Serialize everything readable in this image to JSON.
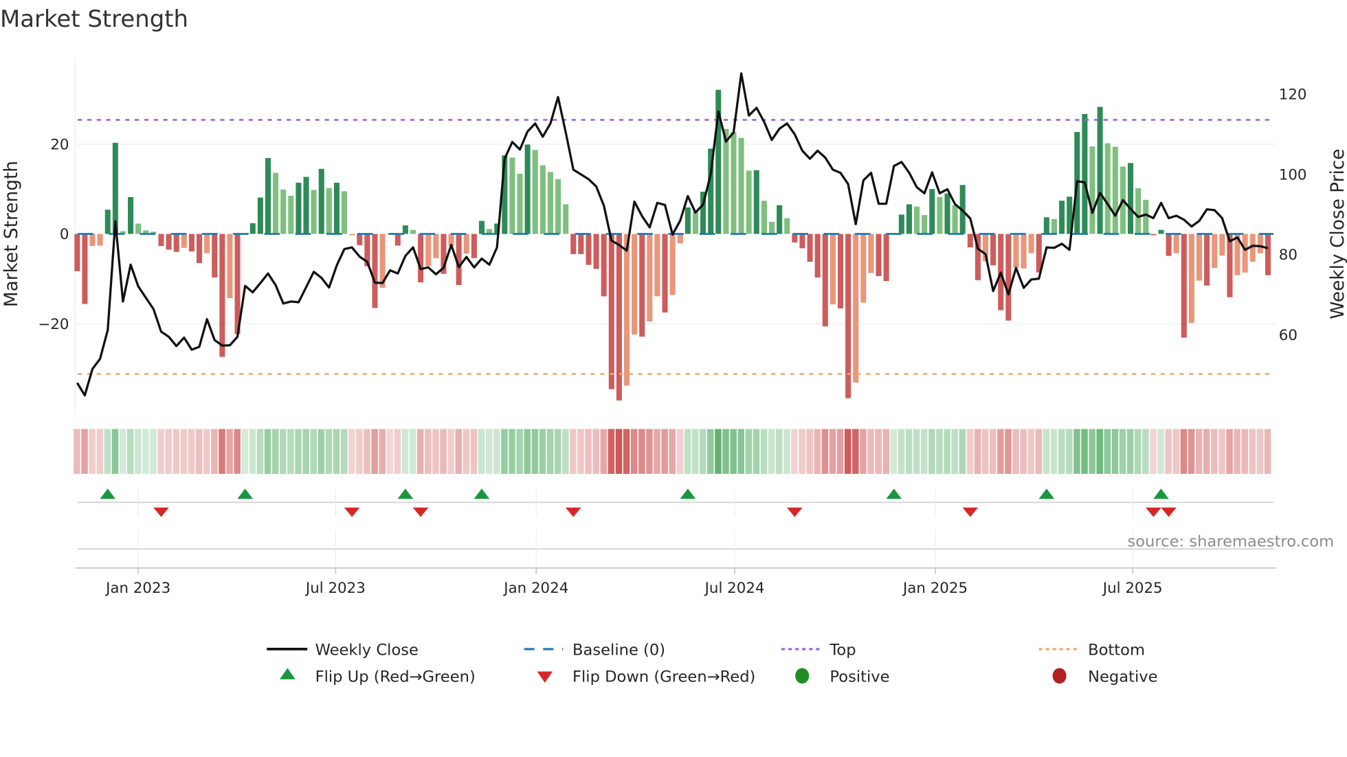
{
  "chart_data": {
    "type": "bar",
    "title": "Market Strength",
    "ylabel": "Market Strength",
    "y2label": "Weekly Close Price",
    "xlabel": "",
    "frequency": "weekly",
    "start_date": "2022-11-06",
    "ylim": [
      -39.8,
      39.6
    ],
    "y2lim": [
      40.6,
      129.5
    ],
    "yticks": [
      20,
      0,
      -20
    ],
    "ytick_labels": [
      "20",
      "0",
      "−20"
    ],
    "y2ticks": [
      120,
      100,
      80,
      60
    ],
    "y2tick_labels": [
      "120",
      "100",
      "80",
      "60"
    ],
    "xticks": [
      {
        "date": "2023-01-01",
        "label": "Jan 2023"
      },
      {
        "date": "2023-07-01",
        "label": "Jul 2023"
      },
      {
        "date": "2024-01-01",
        "label": "Jan 2024"
      },
      {
        "date": "2024-07-01",
        "label": "Jul 2024"
      },
      {
        "date": "2025-01-01",
        "label": "Jan 2025"
      },
      {
        "date": "2025-07-01",
        "label": "Jul 2025"
      }
    ],
    "top_threshold": 25.4,
    "bottom_threshold": -31.2,
    "baseline": 0,
    "strength": [
      -8.3,
      -15.6,
      -2.7,
      -2.6,
      5.4,
      20.3,
      0.6,
      8.2,
      2.3,
      0.8,
      0.5,
      -2.7,
      -3.5,
      -4.0,
      -3.1,
      -3.9,
      -6.5,
      -4.3,
      -9.7,
      -27.4,
      -14.3,
      -22.3,
      0.1,
      2.4,
      8.1,
      16.9,
      13.6,
      9.9,
      8.5,
      11.4,
      12.7,
      9.8,
      14.5,
      10.2,
      11.4,
      9.5,
      -0.3,
      -2.5,
      -7.2,
      -16.5,
      -12.0,
      -0.2,
      -2.6,
      1.9,
      0.9,
      -10.8,
      -7.2,
      -5.4,
      -8.9,
      -2.7,
      -11.4,
      -4.4,
      -5.4,
      2.9,
      1.1,
      2.3,
      17.5,
      17.0,
      13.4,
      19.9,
      18.7,
      15.3,
      13.8,
      12.2,
      6.6,
      -4.5,
      -4.5,
      -6.9,
      -7.8,
      -13.9,
      -34.6,
      -37.1,
      -33.8,
      -22.4,
      -22.9,
      -19.5,
      -13.9,
      -17.5,
      -13.6,
      -2.1,
      5.9,
      5.0,
      9.4,
      19.0,
      32.1,
      23.4,
      22.7,
      21.4,
      14.1,
      14.2,
      7.4,
      2.7,
      6.4,
      3.5,
      -1.9,
      -3.2,
      -6.2,
      -9.7,
      -20.6,
      -15.7,
      -16.6,
      -36.6,
      -33.1,
      -15.3,
      -8.7,
      -9.4,
      -10.5,
      0.2,
      4.3,
      6.6,
      6.1,
      4.2,
      10.0,
      8.2,
      9.0,
      6.4,
      10.9,
      -3.0,
      -10.3,
      -6.1,
      -7.0,
      -17.0,
      -19.3,
      -7.5,
      -7.7,
      -4.3,
      -8.6,
      3.7,
      3.3,
      7.4,
      8.3,
      22.7,
      26.7,
      19.5,
      28.3,
      20.2,
      19.4,
      15.0,
      15.8,
      10.2,
      7.6,
      -0.3,
      0.9,
      -4.9,
      -4.3,
      -23.1,
      -19.8,
      -10.4,
      -11.5,
      -7.6,
      -4.8,
      -14.1,
      -9.2,
      -8.6,
      -6.2,
      -4.3,
      -9.2
    ],
    "strong": "ddllddldll ldddlddldd ldldddllld dldldllddd llddldlldl dlddlddlld lllllddddd ddlldlldll dldddlllld lldldddddl ddlllddddd lldldldddl dddlllddld dddldllldl ldddldlldl ldlllld",
    "close": [
      48.0,
      44.9,
      51.5,
      54.0,
      61.2,
      88.3,
      68.3,
      77.5,
      72.1,
      69.2,
      66.4,
      60.8,
      59.5,
      57.2,
      59.3,
      56.3,
      57.0,
      63.9,
      58.7,
      57.3,
      57.4,
      59.5,
      72.2,
      70.6,
      72.9,
      75.3,
      72.4,
      67.8,
      68.3,
      68.1,
      71.9,
      75.7,
      74.2,
      71.8,
      77.3,
      81.4,
      81.8,
      79.5,
      78.2,
      73.0,
      72.9,
      76.1,
      75.3,
      79.7,
      81.8,
      76.4,
      76.8,
      75.1,
      76.7,
      82.4,
      76.9,
      79.4,
      76.8,
      79.0,
      77.5,
      81.8,
      103.9,
      108.1,
      106.2,
      110.7,
      112.7,
      109.4,
      112.7,
      119.3,
      110.5,
      101.2,
      100.0,
      98.8,
      97.0,
      92.2,
      83.5,
      82.4,
      81.0,
      93.2,
      89.6,
      86.8,
      92.9,
      92.4,
      85.0,
      88.5,
      94.6,
      90.5,
      92.5,
      100.0,
      115.7,
      108.2,
      110.5,
      125.2,
      114.7,
      116.6,
      113.1,
      108.6,
      111.4,
      112.7,
      110.0,
      105.9,
      103.9,
      105.9,
      104.2,
      101.2,
      100.4,
      97.6,
      87.6,
      98.5,
      100.4,
      92.7,
      92.7,
      102.1,
      103.1,
      100.4,
      96.8,
      95.3,
      100.5,
      95.3,
      96.3,
      92.6,
      91.0,
      89.0,
      81.5,
      80.1,
      70.9,
      75.5,
      70.1,
      76.7,
      71.7,
      73.8,
      74.0,
      81.8,
      81.7,
      82.7,
      81.2,
      98.3,
      98.0,
      90.4,
      95.4,
      92.6,
      89.7,
      93.6,
      91.4,
      89.4,
      90.0,
      89.1,
      92.9,
      89.1,
      89.7,
      88.7,
      87.0,
      88.4,
      91.3,
      91.1,
      89.1,
      83.3,
      84.3,
      81.2,
      82.2,
      82.1,
      81.6
    ],
    "flip_up_weeks": [
      4,
      22,
      43,
      53,
      80,
      107,
      127,
      142
    ],
    "flip_down_weeks": [
      11,
      36,
      45,
      65,
      94,
      117,
      141,
      143
    ],
    "legend_placement": "bottom",
    "legend": {
      "weekly_close": "Weekly Close",
      "baseline": "Baseline (0)",
      "top": "Top",
      "bottom": "Bottom",
      "flip_up": "Flip Up (Red→Green)",
      "flip_down": "Flip Down (Green→Red)",
      "positive": "Positive",
      "negative": "Negative"
    },
    "source": "source: sharemaestro.com",
    "colors": {
      "pos_strong": "#2e8b57",
      "pos_weak": "#7fbf7f",
      "neg_strong": "#cd5c5c",
      "neg_weak": "#e9967a",
      "line": "#111111",
      "baseline": "#1f77b4",
      "top": "#9b5de5",
      "bottom": "#f4a460",
      "flip_up": "#1a9641",
      "flip_down": "#d62728",
      "positive": "#228b22",
      "negative": "#b22222"
    }
  }
}
